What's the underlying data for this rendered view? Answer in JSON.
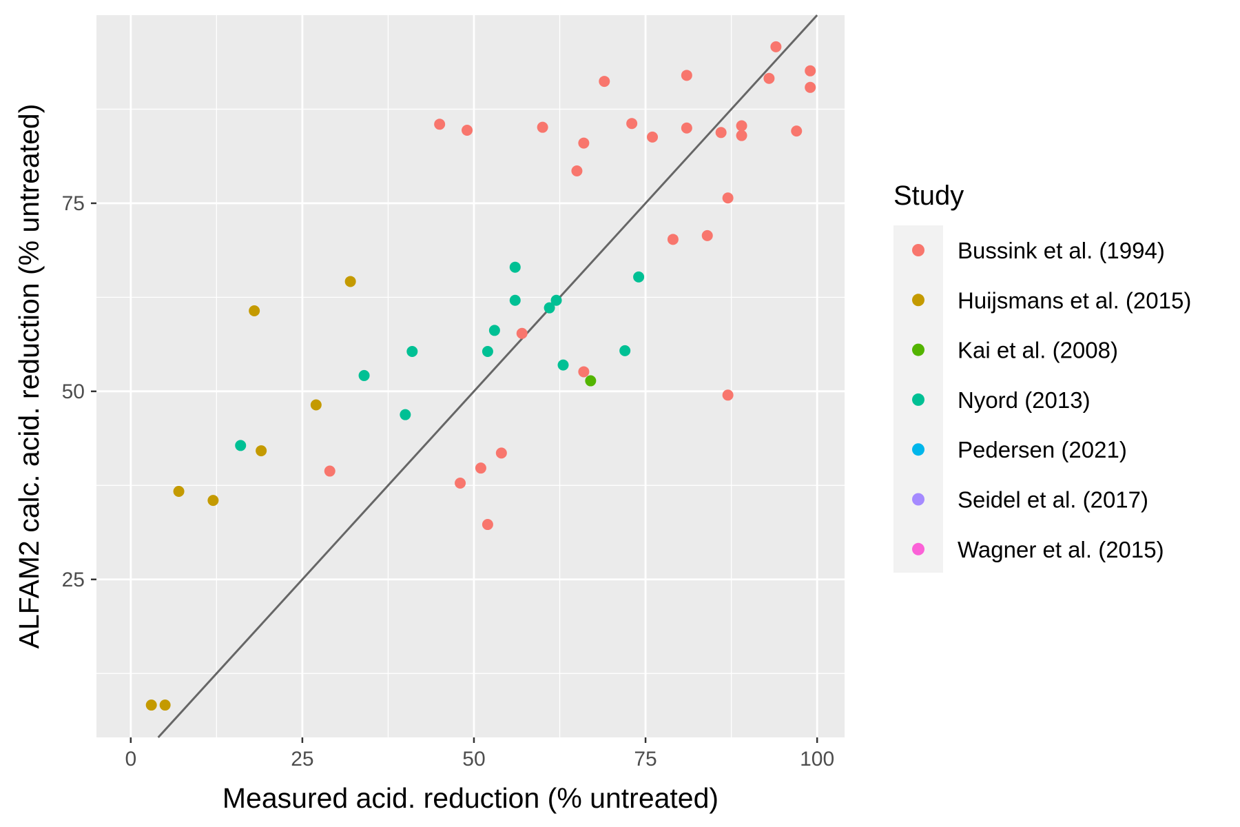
{
  "chart_data": {
    "type": "scatter",
    "title": "",
    "xlabel": "Measured acid. reduction (% untreated)",
    "ylabel": "ALFAM2 calc. acid. reduction (% untreated)",
    "xlim": [
      -5,
      104
    ],
    "ylim": [
      4,
      100
    ],
    "x_ticks": [
      0,
      25,
      50,
      75,
      100
    ],
    "y_ticks": [
      25,
      50,
      75
    ],
    "grid": true,
    "reference_line": {
      "slope": 1,
      "intercept": 0,
      "color": "#666666"
    },
    "legend": {
      "title": "Study",
      "placement": "right"
    },
    "series": [
      {
        "name": "Bussink et al. (1994)",
        "color": "#F8766D",
        "points": [
          [
            45,
            85.5
          ],
          [
            49,
            84.7
          ],
          [
            60,
            85.1
          ],
          [
            65,
            79.3
          ],
          [
            66,
            83.0
          ],
          [
            69,
            91.2
          ],
          [
            73,
            85.6
          ],
          [
            76,
            83.8
          ],
          [
            81,
            92.0
          ],
          [
            81,
            85.0
          ],
          [
            86,
            84.4
          ],
          [
            87,
            75.7
          ],
          [
            79,
            70.2
          ],
          [
            84,
            70.7
          ],
          [
            89,
            85.3
          ],
          [
            89,
            84.0
          ],
          [
            93,
            91.6
          ],
          [
            94,
            95.8
          ],
          [
            97,
            84.6
          ],
          [
            99,
            92.6
          ],
          [
            99,
            90.4
          ],
          [
            57,
            57.7
          ],
          [
            66,
            52.6
          ],
          [
            87,
            49.5
          ],
          [
            54,
            41.8
          ],
          [
            51,
            39.8
          ],
          [
            48,
            37.8
          ],
          [
            52,
            32.3
          ],
          [
            29,
            39.4
          ]
        ]
      },
      {
        "name": "Huijsmans et al. (2015)",
        "color": "#C49A00",
        "points": [
          [
            32,
            64.6
          ],
          [
            18,
            60.7
          ],
          [
            27,
            48.2
          ],
          [
            19,
            42.1
          ],
          [
            7,
            36.7
          ],
          [
            12,
            35.5
          ],
          [
            3,
            8.3
          ],
          [
            5,
            8.3
          ]
        ]
      },
      {
        "name": "Kai et al. (2008)",
        "color": "#53B400",
        "points": [
          [
            67,
            51.4
          ]
        ]
      },
      {
        "name": "Nyord (2013)",
        "color": "#00C094",
        "points": [
          [
            56,
            66.5
          ],
          [
            74,
            65.2
          ],
          [
            56,
            62.1
          ],
          [
            62,
            62.1
          ],
          [
            61,
            61.1
          ],
          [
            53,
            58.1
          ],
          [
            41,
            55.3
          ],
          [
            52,
            55.3
          ],
          [
            72,
            55.4
          ],
          [
            63,
            53.5
          ],
          [
            34,
            52.1
          ],
          [
            40,
            46.9
          ],
          [
            16,
            42.8
          ]
        ]
      },
      {
        "name": "Pedersen (2021)",
        "color": "#00B6EB",
        "points": []
      },
      {
        "name": "Seidel et al. (2017)",
        "color": "#A58AFF",
        "points": []
      },
      {
        "name": "Wagner et al. (2015)",
        "color": "#FB61D7",
        "points": []
      }
    ]
  }
}
